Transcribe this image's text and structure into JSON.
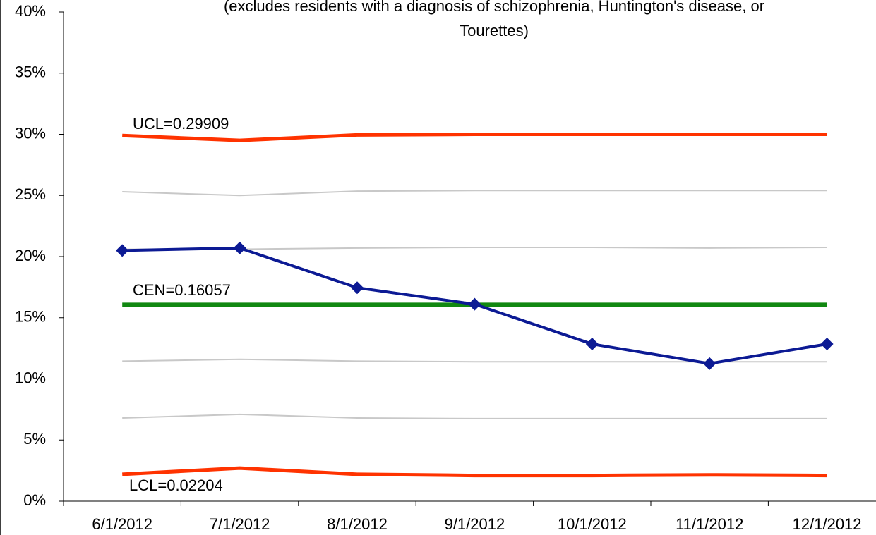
{
  "chart_data": {
    "type": "line",
    "subtitle": [
      "(excludes residents with a diagnosis of schizophrenia, Huntington's disease, or",
      "Tourettes)"
    ],
    "categories": [
      "6/1/2012",
      "7/1/2012",
      "8/1/2012",
      "9/1/2012",
      "10/1/2012",
      "11/1/2012",
      "12/1/2012"
    ],
    "series": [
      {
        "color": "#c8c8c8",
        "values": [
          25.3,
          25.0,
          25.35,
          25.4,
          25.4,
          25.4,
          25.4
        ]
      },
      {
        "color": "#c8c8c8",
        "values": [
          20.6,
          20.6,
          20.7,
          20.75,
          20.75,
          20.7,
          20.75
        ]
      },
      {
        "color": "#c8c8c8",
        "values": [
          11.45,
          11.6,
          11.45,
          11.4,
          11.4,
          11.4,
          11.4
        ]
      },
      {
        "color": "#c8c8c8",
        "values": [
          6.8,
          7.1,
          6.8,
          6.75,
          6.75,
          6.75,
          6.75
        ]
      },
      {
        "color": "#ff3300",
        "values": [
          29.9,
          29.5,
          29.95,
          30.0,
          30.0,
          30.0,
          30.0
        ]
      },
      {
        "color": "#ff3300",
        "values": [
          2.2,
          2.7,
          2.2,
          2.1,
          2.1,
          2.15,
          2.1
        ]
      },
      {
        "color": "#118811",
        "values": [
          16.057,
          16.057,
          16.057,
          16.057,
          16.057,
          16.057,
          16.057
        ]
      },
      {
        "color": "#0c1a94",
        "marker": "diamond",
        "values": [
          20.5,
          20.7,
          17.45,
          16.1,
          12.85,
          11.25,
          12.85
        ]
      }
    ],
    "annotations": [
      "UCL=0.29909",
      "CEN=0.16057",
      "LCL=0.02204"
    ],
    "ylim": [
      0,
      40
    ],
    "yticks": [
      {
        "value": 0,
        "label": "0%"
      },
      {
        "value": 5,
        "label": "5%"
      },
      {
        "value": 10,
        "label": "10%"
      },
      {
        "value": 15,
        "label": "15%"
      },
      {
        "value": 20,
        "label": "20%"
      },
      {
        "value": 25,
        "label": "25%"
      },
      {
        "value": 30,
        "label": "30%"
      },
      {
        "value": 35,
        "label": "35%"
      },
      {
        "value": 40,
        "label": "40%"
      }
    ],
    "grid": false
  }
}
